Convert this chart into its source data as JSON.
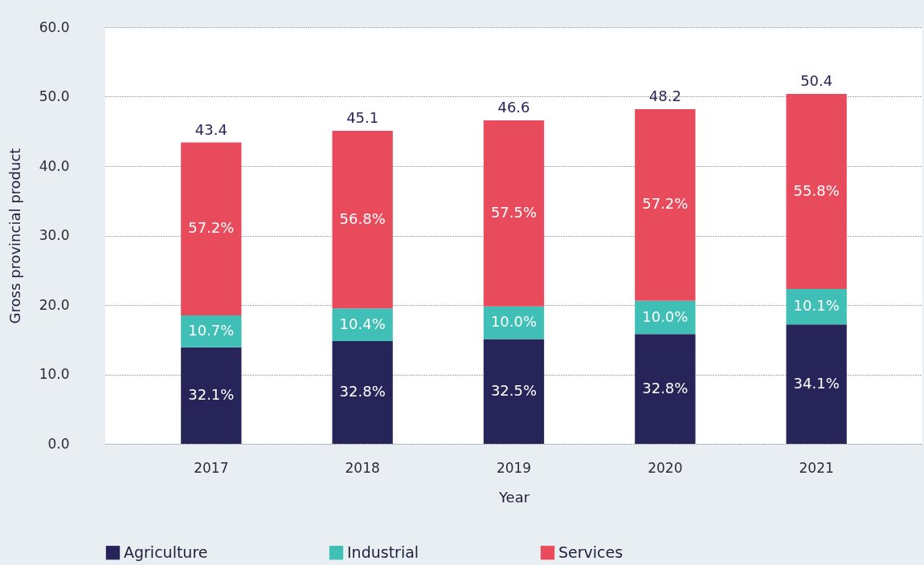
{
  "chart_data": {
    "type": "bar",
    "stacked": true,
    "xlabel": "Year",
    "ylabel": "Gross provincial product",
    "categories": [
      "2017",
      "2018",
      "2019",
      "2020",
      "2021"
    ],
    "series": [
      {
        "name": "Agriculture",
        "color": "#262459",
        "values": [
          13.9,
          14.8,
          15.1,
          15.8,
          17.2
        ]
      },
      {
        "name": "Industrial",
        "color": "#3fbfb5",
        "values": [
          4.6,
          4.7,
          4.7,
          4.8,
          5.1
        ]
      },
      {
        "name": "Services",
        "color": "#e84c5c",
        "values": [
          24.9,
          25.6,
          26.8,
          27.6,
          28.1
        ]
      }
    ],
    "annotations": [
      "32.1%",
      "32.8%",
      "32.5%",
      "32.8%",
      "34.1%",
      "10.7%",
      "10.4%",
      "10.0%",
      "10.0%",
      "10.1%",
      "57.2%",
      "56.8%",
      "57.5%",
      "57.2%",
      "55.8%"
    ],
    "totals": [
      "43.4",
      "45.1",
      "46.6",
      "48.2",
      "50.4"
    ],
    "ylim": [
      0,
      60
    ],
    "yticks": [
      {
        "value": 0,
        "label": "0.0"
      },
      {
        "value": 10,
        "label": "10.0"
      },
      {
        "value": 20,
        "label": "20.0"
      },
      {
        "value": 30,
        "label": "30.0"
      },
      {
        "value": 40,
        "label": "40.0"
      },
      {
        "value": 50,
        "label": "50.0"
      },
      {
        "value": 60,
        "label": "60.0"
      }
    ],
    "grid": "y",
    "legend": "bottom"
  }
}
